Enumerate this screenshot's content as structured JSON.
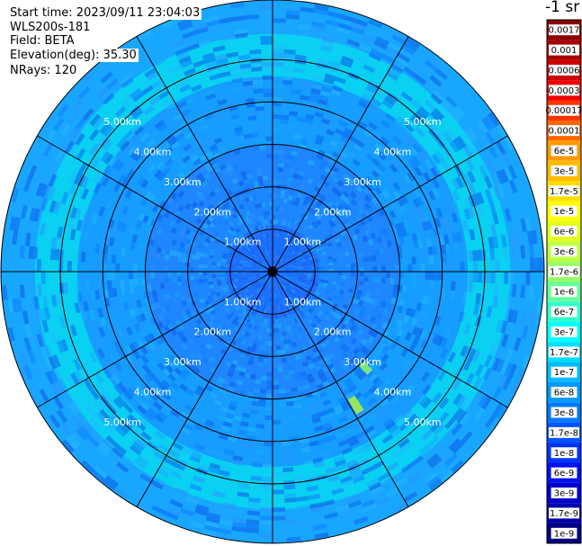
{
  "info": {
    "start_time": "Start time: 2023/09/11 23:04:03",
    "device": "WLS200s-181",
    "field": "Field: BETA",
    "elevation": "Elevation(deg): 35.30",
    "nrays": "NRays: 120"
  },
  "chart_data": {
    "type": "polar-ppi",
    "unit_label": "-1 sr",
    "ring_labels": [
      "1.00km",
      "2.00km",
      "3.00km",
      "4.00km",
      "5.00km"
    ],
    "ring_distances_km": [
      1,
      2,
      3,
      4,
      5
    ],
    "max_range_km": 6.4,
    "n_rays": 120,
    "spokes_deg": [
      0,
      30,
      60,
      90,
      120,
      150,
      180,
      210,
      240,
      270,
      300,
      330
    ],
    "colorbar": {
      "labels": [
        "0.0017",
        "0.001",
        "0.0006",
        "0.0003",
        "0.00017",
        "0.0001",
        "6e-5",
        "3e-5",
        "1.7e-5",
        "1e-5",
        "6e-6",
        "3e-6",
        "1.7e-6",
        "1e-6",
        "6e-7",
        "3e-7",
        "1.7e-7",
        "1e-7",
        "6e-8",
        "3e-8",
        "1.7e-8",
        "1e-8",
        "6e-9",
        "3e-9",
        "1.7e-9",
        "1e-9"
      ],
      "colors": [
        "#8a0000",
        "#a80000",
        "#cc0000",
        "#ee0000",
        "#ff3300",
        "#ff6600",
        "#ff9900",
        "#ffbb00",
        "#ffdd00",
        "#ffff00",
        "#e6ff19",
        "#c0ff40",
        "#99ff66",
        "#66ff99",
        "#33ffcc",
        "#00ffff",
        "#00ddff",
        "#00bbff",
        "#0099ff",
        "#0077ff",
        "#0055ff",
        "#0033ff",
        "#0011ee",
        "#0000cc",
        "#0000aa",
        "#000080"
      ]
    },
    "range_bands": [
      {
        "from_km": 0.0,
        "to_km": 1.1,
        "color": "#1f6fff"
      },
      {
        "from_km": 1.1,
        "to_km": 3.0,
        "color": "#1e86ff"
      },
      {
        "from_km": 3.0,
        "to_km": 4.6,
        "color": "#159dff"
      },
      {
        "from_km": 4.6,
        "to_km": 5.6,
        "color": "#0ad0f2"
      },
      {
        "from_km": 5.6,
        "to_km": 6.4,
        "color": "#19a6ff"
      }
    ],
    "features": [
      {
        "azimuth_deg": 148,
        "from_km": 3.5,
        "to_km": 3.9,
        "color": "#9ae65a"
      },
      {
        "azimuth_deg": 136,
        "from_km": 3.0,
        "to_km": 3.3,
        "color": "#7de87a"
      }
    ]
  }
}
